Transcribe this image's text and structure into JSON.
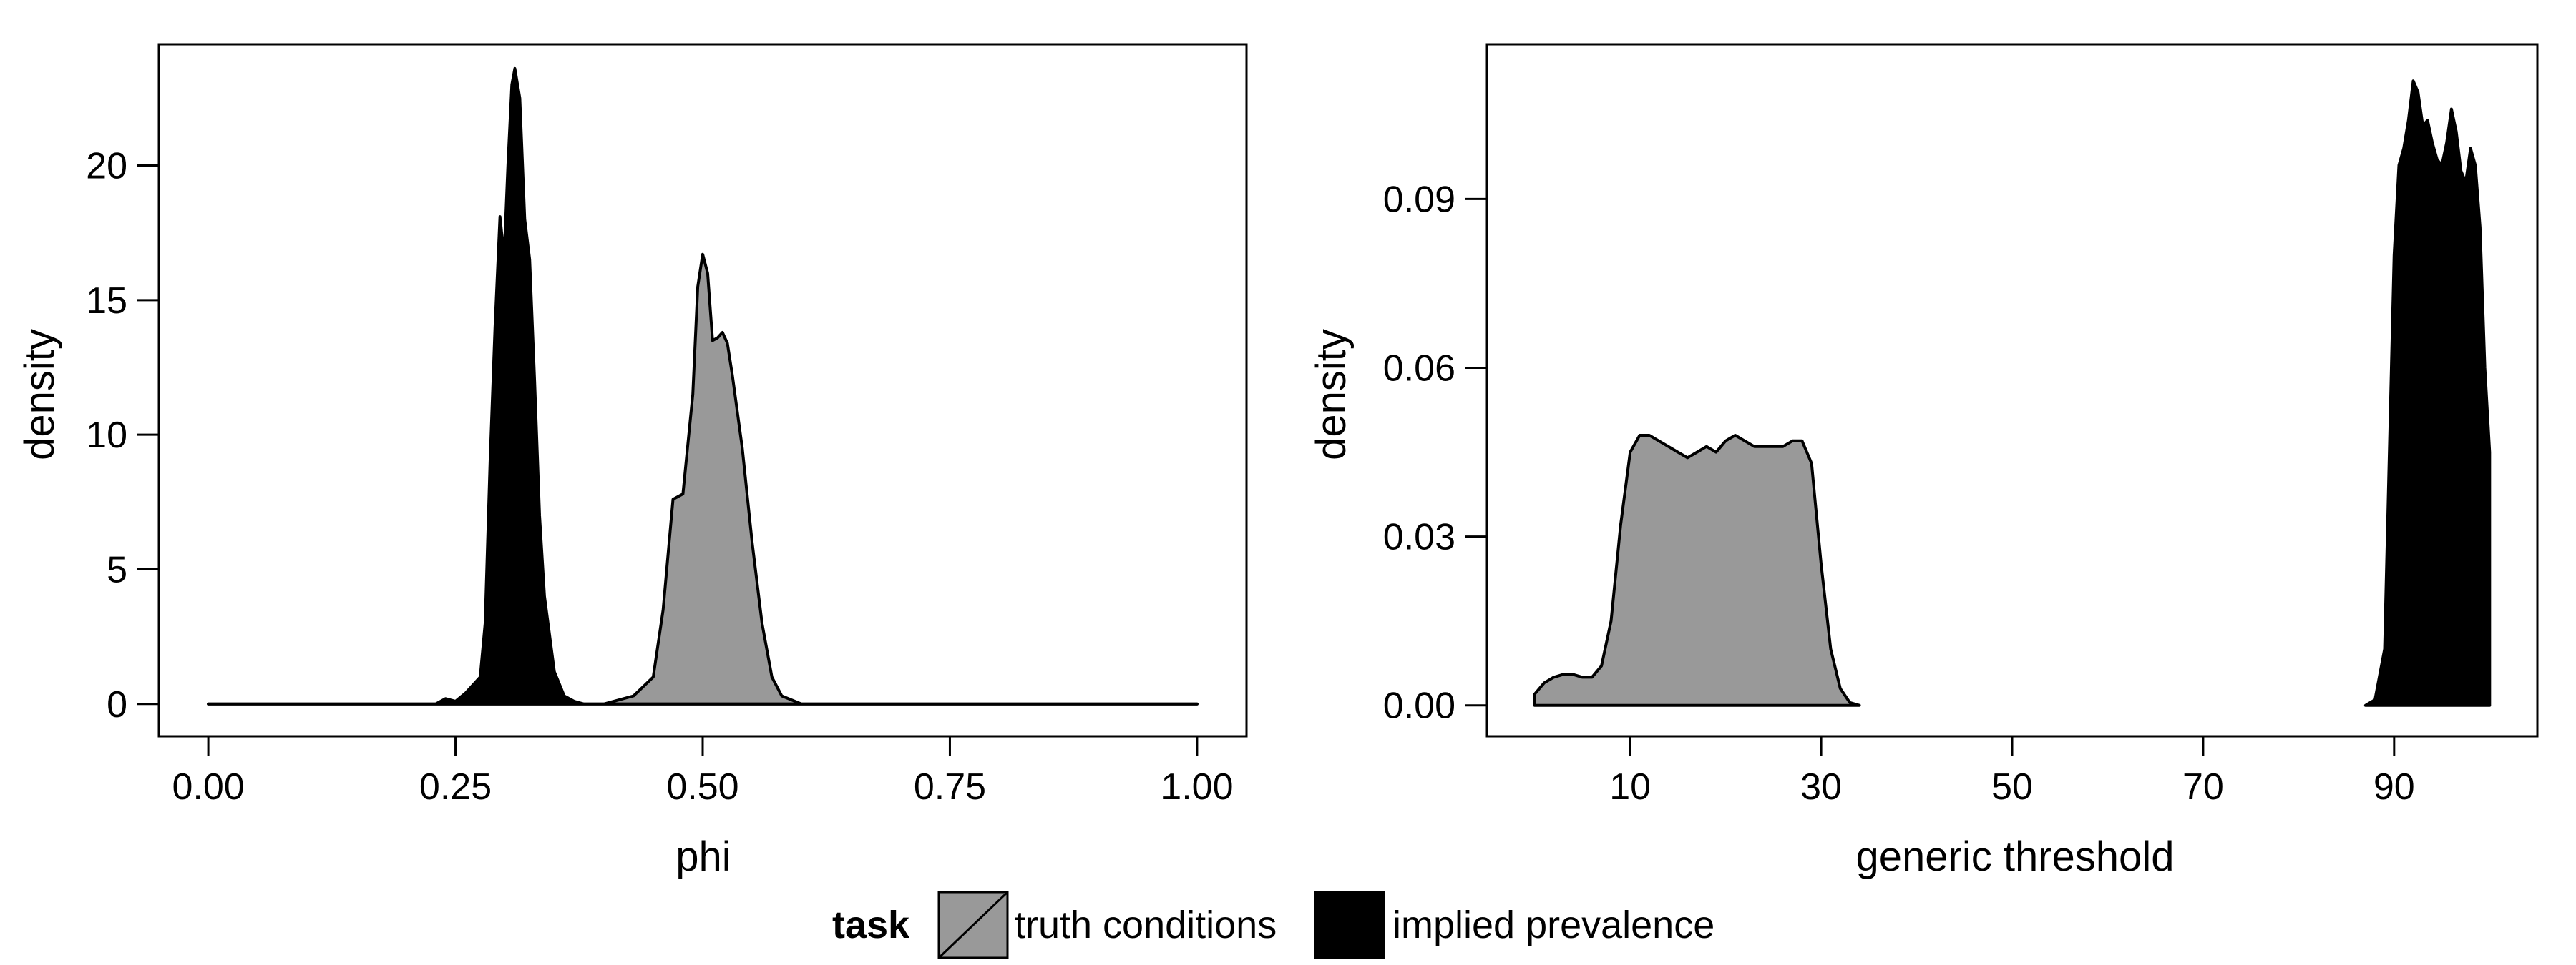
{
  "chart_data": [
    {
      "type": "area",
      "title": "",
      "xlabel": "phi",
      "ylabel": "density",
      "xlim": [
        -0.05,
        1.05
      ],
      "ylim": [
        -1.2,
        24.5
      ],
      "xticks": [
        0,
        0.25,
        0.5,
        0.75,
        1
      ],
      "xtick_labels": [
        "0.00",
        "0.25",
        "0.50",
        "0.75",
        "1.00"
      ],
      "yticks": [
        0,
        5,
        10,
        15,
        20
      ],
      "ytick_labels": [
        "0",
        "5",
        "10",
        "15",
        "20"
      ],
      "grid": false,
      "series": [
        {
          "name": "truth conditions",
          "fill": "#999999",
          "x": [
            0,
            0.4,
            0.43,
            0.45,
            0.46,
            0.47,
            0.48,
            0.49,
            0.495,
            0.5,
            0.505,
            0.51,
            0.515,
            0.52,
            0.525,
            0.53,
            0.54,
            0.55,
            0.56,
            0.57,
            0.58,
            0.6,
            1.0
          ],
          "y": [
            0,
            0,
            0.3,
            1.0,
            3.5,
            7.6,
            7.8,
            11.5,
            15.5,
            16.7,
            16.0,
            13.5,
            13.6,
            13.8,
            13.4,
            12.2,
            9.5,
            6.0,
            3.0,
            1.0,
            0.3,
            0,
            0
          ]
        },
        {
          "name": "implied prevalence",
          "fill": "#000000",
          "x": [
            0,
            0.23,
            0.24,
            0.25,
            0.26,
            0.275,
            0.28,
            0.285,
            0.29,
            0.295,
            0.298,
            0.3,
            0.303,
            0.307,
            0.31,
            0.315,
            0.32,
            0.325,
            0.33,
            0.335,
            0.34,
            0.35,
            0.36,
            0.37,
            0.38,
            1.0
          ],
          "y": [
            0,
            0,
            0.2,
            0.1,
            0.4,
            1.0,
            3.0,
            9.0,
            14.0,
            18.1,
            17.0,
            17.3,
            20.0,
            23.0,
            23.6,
            22.5,
            18.0,
            16.5,
            12.0,
            7.0,
            4.0,
            1.2,
            0.3,
            0.1,
            0,
            0
          ]
        }
      ]
    },
    {
      "type": "area",
      "title": "",
      "xlabel": "generic threshold",
      "ylabel": "density",
      "xlim": [
        -5,
        105
      ],
      "ylim": [
        -0.0055,
        0.1175
      ],
      "xticks": [
        10,
        30,
        50,
        70,
        90
      ],
      "xtick_labels": [
        "10",
        "30",
        "50",
        "70",
        "90"
      ],
      "yticks": [
        0,
        0.03,
        0.06,
        0.09
      ],
      "ytick_labels": [
        "0.00",
        "0.03",
        "0.06",
        "0.09"
      ],
      "grid": false,
      "series": [
        {
          "name": "truth conditions",
          "fill": "#999999",
          "x": [
            0,
            1,
            2,
            3,
            4,
            5,
            6,
            7,
            8,
            9,
            10,
            11,
            12,
            13,
            14,
            15,
            16,
            17,
            18,
            19,
            20,
            21,
            22,
            23,
            24,
            25,
            26,
            27,
            28,
            29,
            30,
            31,
            32,
            33,
            34
          ],
          "y": [
            0.002,
            0.004,
            0.005,
            0.0055,
            0.0055,
            0.005,
            0.005,
            0.007,
            0.015,
            0.032,
            0.045,
            0.048,
            0.048,
            0.047,
            0.046,
            0.045,
            0.044,
            0.045,
            0.046,
            0.045,
            0.047,
            0.048,
            0.047,
            0.046,
            0.046,
            0.046,
            0.046,
            0.047,
            0.047,
            0.043,
            0.025,
            0.01,
            0.003,
            0.0005,
            0
          ]
        },
        {
          "name": "implied prevalence",
          "fill": "#000000",
          "x": [
            87,
            88,
            89,
            90,
            90.5,
            91,
            91.5,
            92,
            92.5,
            93,
            93.5,
            94,
            94.5,
            95,
            95.5,
            96,
            96.5,
            97,
            97.5,
            98,
            98.5,
            99,
            99.5,
            100
          ],
          "y": [
            0,
            0.001,
            0.01,
            0.08,
            0.096,
            0.099,
            0.104,
            0.111,
            0.109,
            0.103,
            0.104,
            0.1,
            0.097,
            0.096,
            0.1,
            0.106,
            0.102,
            0.095,
            0.093,
            0.099,
            0.096,
            0.085,
            0.06,
            0.045
          ]
        }
      ]
    }
  ],
  "legend": {
    "title": "task",
    "items": [
      {
        "label": "truth conditions",
        "color": "#999999",
        "diagonal": true
      },
      {
        "label": "implied prevalence",
        "color": "#000000",
        "diagonal": false
      }
    ]
  }
}
